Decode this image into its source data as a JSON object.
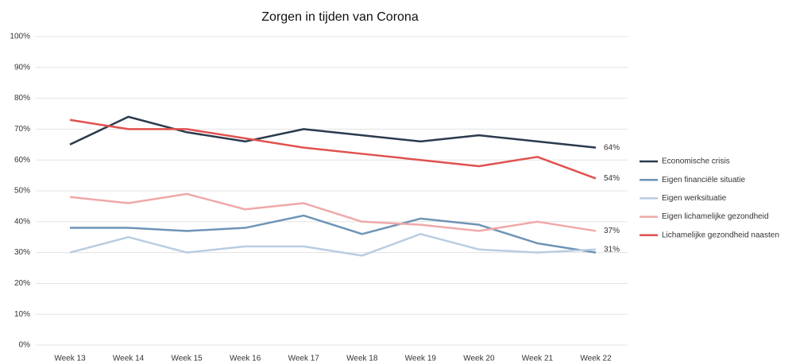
{
  "chart_data": {
    "type": "line",
    "title": "Zorgen in tijden van Corona",
    "categories": [
      "Week 13",
      "Week 14",
      "Week 15",
      "Week 16",
      "Week 17",
      "Week 18",
      "Week 19",
      "Week 20",
      "Week 21",
      "Week 22"
    ],
    "series": [
      {
        "name": "Economische crisis",
        "color": "#2b3a4e",
        "values": [
          65,
          74,
          69,
          66,
          70,
          68,
          66,
          68,
          66,
          64
        ],
        "value_labels": [
          null,
          null,
          null,
          null,
          null,
          null,
          null,
          null,
          null,
          "64%"
        ]
      },
      {
        "name": "Eigen financiële situatie",
        "color": "#6e94b5",
        "values": [
          38,
          38,
          37,
          38,
          42,
          36,
          41,
          39,
          33,
          30
        ]
      },
      {
        "name": "Eigen werksituatie",
        "color": "#b9cde0",
        "values": [
          30,
          35,
          30,
          32,
          32,
          29,
          36,
          31,
          30,
          31
        ],
        "value_labels": [
          null,
          null,
          null,
          null,
          null,
          null,
          null,
          null,
          null,
          "31%"
        ]
      },
      {
        "name": "Eigen lichamelijke gezondheid",
        "color": "#f0a8a8",
        "values": [
          48,
          46,
          49,
          44,
          46,
          40,
          39,
          37,
          40,
          37
        ],
        "value_labels": [
          null,
          null,
          null,
          null,
          null,
          null,
          null,
          null,
          null,
          "37%"
        ]
      },
      {
        "name": "Lichamelijke gezondheid naasten",
        "color": "#e0514f",
        "values": [
          73,
          70,
          70,
          67,
          64,
          62,
          60,
          58,
          61,
          54
        ],
        "value_labels": [
          null,
          null,
          null,
          null,
          null,
          null,
          null,
          null,
          null,
          "54%"
        ]
      }
    ],
    "ylim": [
      0,
      100
    ],
    "yticks": [
      {
        "value": 0,
        "label": "0%"
      },
      {
        "value": 10,
        "label": "10%"
      },
      {
        "value": 20,
        "label": "20%"
      },
      {
        "value": 30,
        "label": "30%"
      },
      {
        "value": 40,
        "label": "40%"
      },
      {
        "value": 50,
        "label": "50%"
      },
      {
        "value": 60,
        "label": "60%"
      },
      {
        "value": 70,
        "label": "70%"
      },
      {
        "value": 80,
        "label": "80%"
      },
      {
        "value": 90,
        "label": "90%"
      },
      {
        "value": 100,
        "label": "100%"
      }
    ],
    "grid": true,
    "legend": "right"
  }
}
